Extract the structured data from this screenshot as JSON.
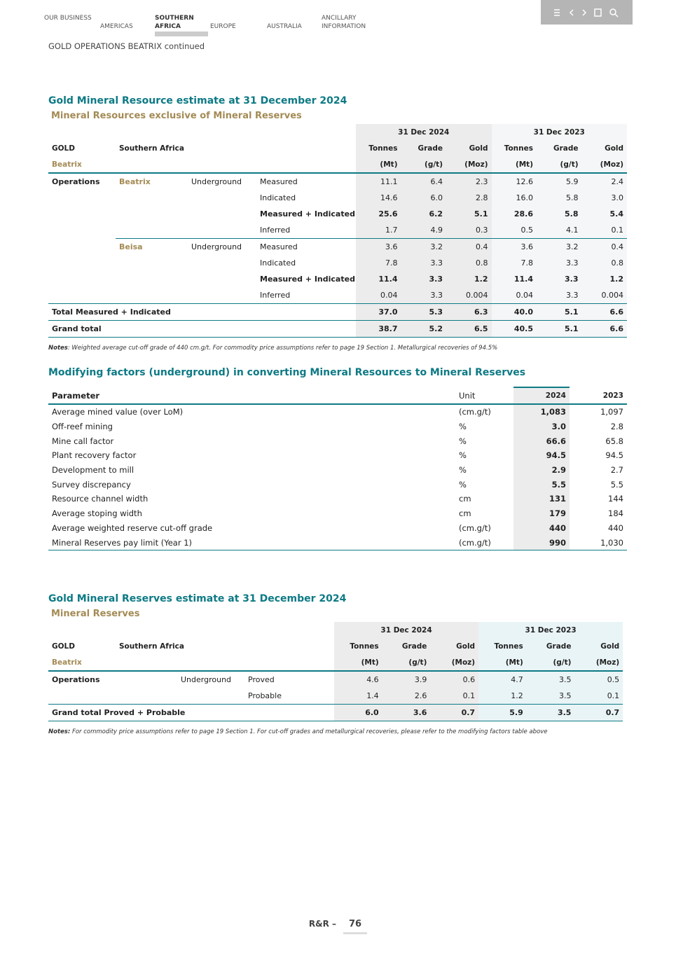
{
  "nav": {
    "items": [
      "OUR BUSINESS",
      "AMERICAS",
      "SOUTHERN AFRICA",
      "EUROPE",
      "AUSTRALIA",
      "ANCILLARY INFORMATION"
    ],
    "active": 2
  },
  "section": "GOLD OPERATIONS BEATRIX continued",
  "resource_table": {
    "title": "Gold Mineral Resource estimate at 31 December 2024",
    "subtitle": "Mineral Resources exclusive of Mineral Reserves",
    "periods": [
      "31 Dec 2024",
      "31 Dec 2023"
    ],
    "header": [
      "GOLD",
      "Southern Africa"
    ],
    "columns": [
      "Tonnes",
      "Grade",
      "Gold",
      "Tonnes",
      "Grade",
      "Gold"
    ],
    "region": "Beatrix",
    "units": [
      "(Mt)",
      "(g/t)",
      "(Moz)",
      "(Mt)",
      "(g/t)",
      "(Moz)"
    ],
    "rows": [
      {
        "cells": [
          "Operations",
          "Beatrix",
          "Underground",
          "Measured"
        ],
        "values": [
          "11.1",
          "6.4",
          "2.3",
          "12.6",
          "5.9",
          "2.4"
        ]
      },
      {
        "cells": [
          null,
          null,
          null,
          "Indicated"
        ],
        "values": [
          "14.6",
          "6.0",
          "2.8",
          "16.0",
          "5.8",
          "3.0"
        ]
      },
      {
        "cells": [
          null,
          null,
          null,
          "Measured + Indicated"
        ],
        "values": [
          "25.6",
          "6.2",
          "5.1",
          "28.6",
          "5.8",
          "5.4"
        ]
      },
      {
        "cells": [
          null,
          null,
          null,
          "Inferred"
        ],
        "values": [
          "1.7",
          "4.9",
          "0.3",
          "0.5",
          "4.1",
          "0.1"
        ]
      },
      {
        "cells": [
          null,
          "Beisa",
          "Underground",
          "Measured"
        ],
        "values": [
          "3.6",
          "3.2",
          "0.4",
          "3.6",
          "3.2",
          "0.4"
        ]
      },
      {
        "cells": [
          null,
          null,
          null,
          "Indicated"
        ],
        "values": [
          "7.8",
          "3.3",
          "0.8",
          "7.8",
          "3.3",
          "0.8"
        ]
      },
      {
        "cells": [
          null,
          null,
          null,
          "Measured + Indicated"
        ],
        "values": [
          "11.4",
          "3.3",
          "1.2",
          "11.4",
          "3.3",
          "1.2"
        ]
      },
      {
        "cells": [
          null,
          null,
          null,
          "Inferred"
        ],
        "values": [
          "0.04",
          "3.3",
          "0.004",
          "0.04",
          "3.3",
          "0.004"
        ]
      },
      {
        "cells": [
          "Total Measured + Indicated",
          null,
          null,
          null
        ],
        "values": [
          "37.0",
          "5.3",
          "6.3",
          "40.0",
          "5.1",
          "6.6"
        ]
      },
      {
        "cells": [
          "Grand total",
          null,
          null,
          null
        ],
        "values": [
          "38.7",
          "5.2",
          "6.5",
          "40.5",
          "5.1",
          "6.6"
        ]
      }
    ],
    "bold_rows": [
      2,
      6,
      8,
      9
    ],
    "notes": {
      "label": "Notes",
      "text": ": Weighted average cut-off grade of 440 cm.g/t. For commodity price assumptions refer to page 19 Section 1. Metallurgical recoveries of 94.5%"
    }
  },
  "modifying_factors": {
    "title": "Modifying factors (underground) in converting Mineral Resources to Mineral Reserves",
    "columns": [
      "Parameter",
      "Unit",
      "2024",
      "2023"
    ],
    "rows": [
      [
        "Average mined value (over LoM)",
        "(cm.g/t)",
        "1,083",
        "1,097"
      ],
      [
        "Off-reef mining",
        "%",
        "3.0",
        "2.8"
      ],
      [
        "Mine call factor",
        "%",
        "66.6",
        "65.8"
      ],
      [
        "Plant recovery factor",
        "%",
        "94.5",
        "94.5"
      ],
      [
        "Development to mill",
        "%",
        "2.9",
        "2.7"
      ],
      [
        "Survey discrepancy",
        "%",
        "5.5",
        "5.5"
      ],
      [
        "Resource channel width",
        "cm",
        "131",
        "144"
      ],
      [
        "Average stoping width",
        "cm",
        "179",
        "184"
      ],
      [
        "Average weighted reserve cut-off grade",
        "(cm.g/t)",
        "440",
        "440"
      ],
      [
        "Mineral Reserves pay limit (Year 1)",
        "(cm.g/t)",
        "990",
        "1,030"
      ]
    ]
  },
  "reserve_table": {
    "title": "Gold Mineral Reserves estimate at 31 December 2024",
    "subtitle": "Mineral Reserves",
    "periods": [
      "31 Dec 2024",
      "31 Dec 2023"
    ],
    "header": [
      "GOLD",
      "Southern Africa"
    ],
    "columns": [
      "Tonnes",
      "Grade",
      "Gold",
      "Tonnes",
      "Grade",
      "Gold"
    ],
    "region": "Beatrix",
    "units": [
      "(Mt)",
      "(g/t)",
      "(Moz)",
      "(Mt)",
      "(g/t)",
      "(Moz)"
    ],
    "rows": [
      {
        "cells": [
          "Operations",
          null,
          "Underground",
          "Proved"
        ],
        "values": [
          "4.6",
          "3.9",
          "0.6",
          "4.7",
          "3.5",
          "0.5"
        ]
      },
      {
        "cells": [
          null,
          null,
          null,
          "Probable"
        ],
        "values": [
          "1.4",
          "2.6",
          "0.1",
          "1.2",
          "3.5",
          "0.1"
        ]
      },
      {
        "cells": [
          "Grand total Proved + Probable",
          null,
          null,
          null
        ],
        "values": [
          "6.0",
          "3.6",
          "0.7",
          "5.9",
          "3.5",
          "0.7"
        ]
      }
    ],
    "bold_rows": [
      2
    ],
    "notes": {
      "label": "Notes:",
      "text": " For commodity price assumptions refer to page 19 Section 1. For cut-off grades and metallurgical recoveries, please refer to the modifying factors table above"
    }
  },
  "footer": {
    "label": "R&R –",
    "page": "76"
  }
}
